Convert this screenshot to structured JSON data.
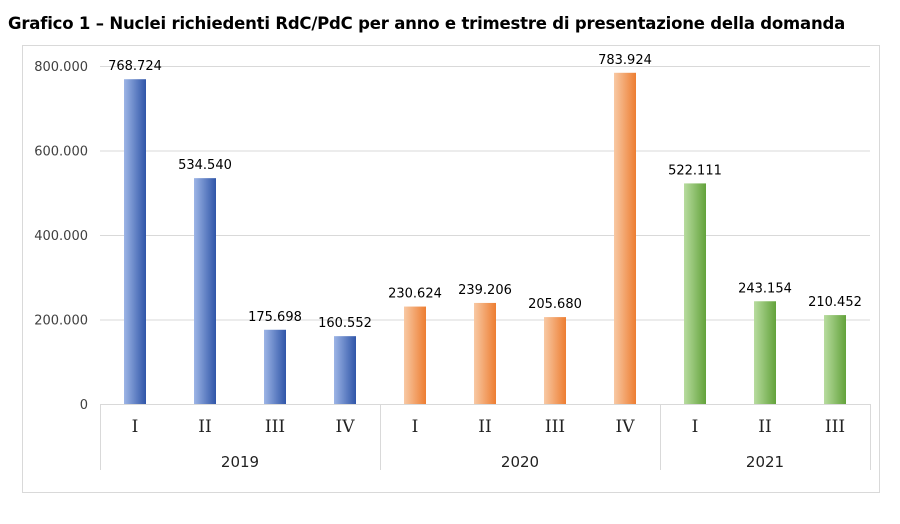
{
  "chart_data": {
    "type": "bar",
    "title": "Grafico 1 – Nuclei richiedenti RdC/PdC per anno e trimestre di presentazione della domanda",
    "groups": [
      {
        "label": "2019",
        "color": "#4472c4",
        "categories": [
          "I",
          "II",
          "III",
          "IV"
        ],
        "values": [
          768724,
          534540,
          175698,
          160552
        ],
        "labels": [
          "768.724",
          "534.540",
          "175.698",
          "160.552"
        ]
      },
      {
        "label": "2020",
        "color": "#ed7d31",
        "categories": [
          "I",
          "II",
          "III",
          "IV"
        ],
        "values": [
          230624,
          239206,
          205680,
          783924
        ],
        "labels": [
          "230.624",
          "239.206",
          "205.680",
          "783.924"
        ]
      },
      {
        "label": "2021",
        "color": "#70ad47",
        "categories": [
          "I",
          "II",
          "III"
        ],
        "values": [
          522111,
          243154,
          210452
        ],
        "labels": [
          "522.111",
          "243.154",
          "210.452"
        ]
      }
    ],
    "ylim": [
      0,
      800000
    ],
    "yticks": [
      0,
      200000,
      400000,
      600000,
      800000
    ],
    "ytick_labels": [
      "0",
      "200.000",
      "400.000",
      "600.000",
      "800.000"
    ],
    "grid": true,
    "legend": "none"
  }
}
